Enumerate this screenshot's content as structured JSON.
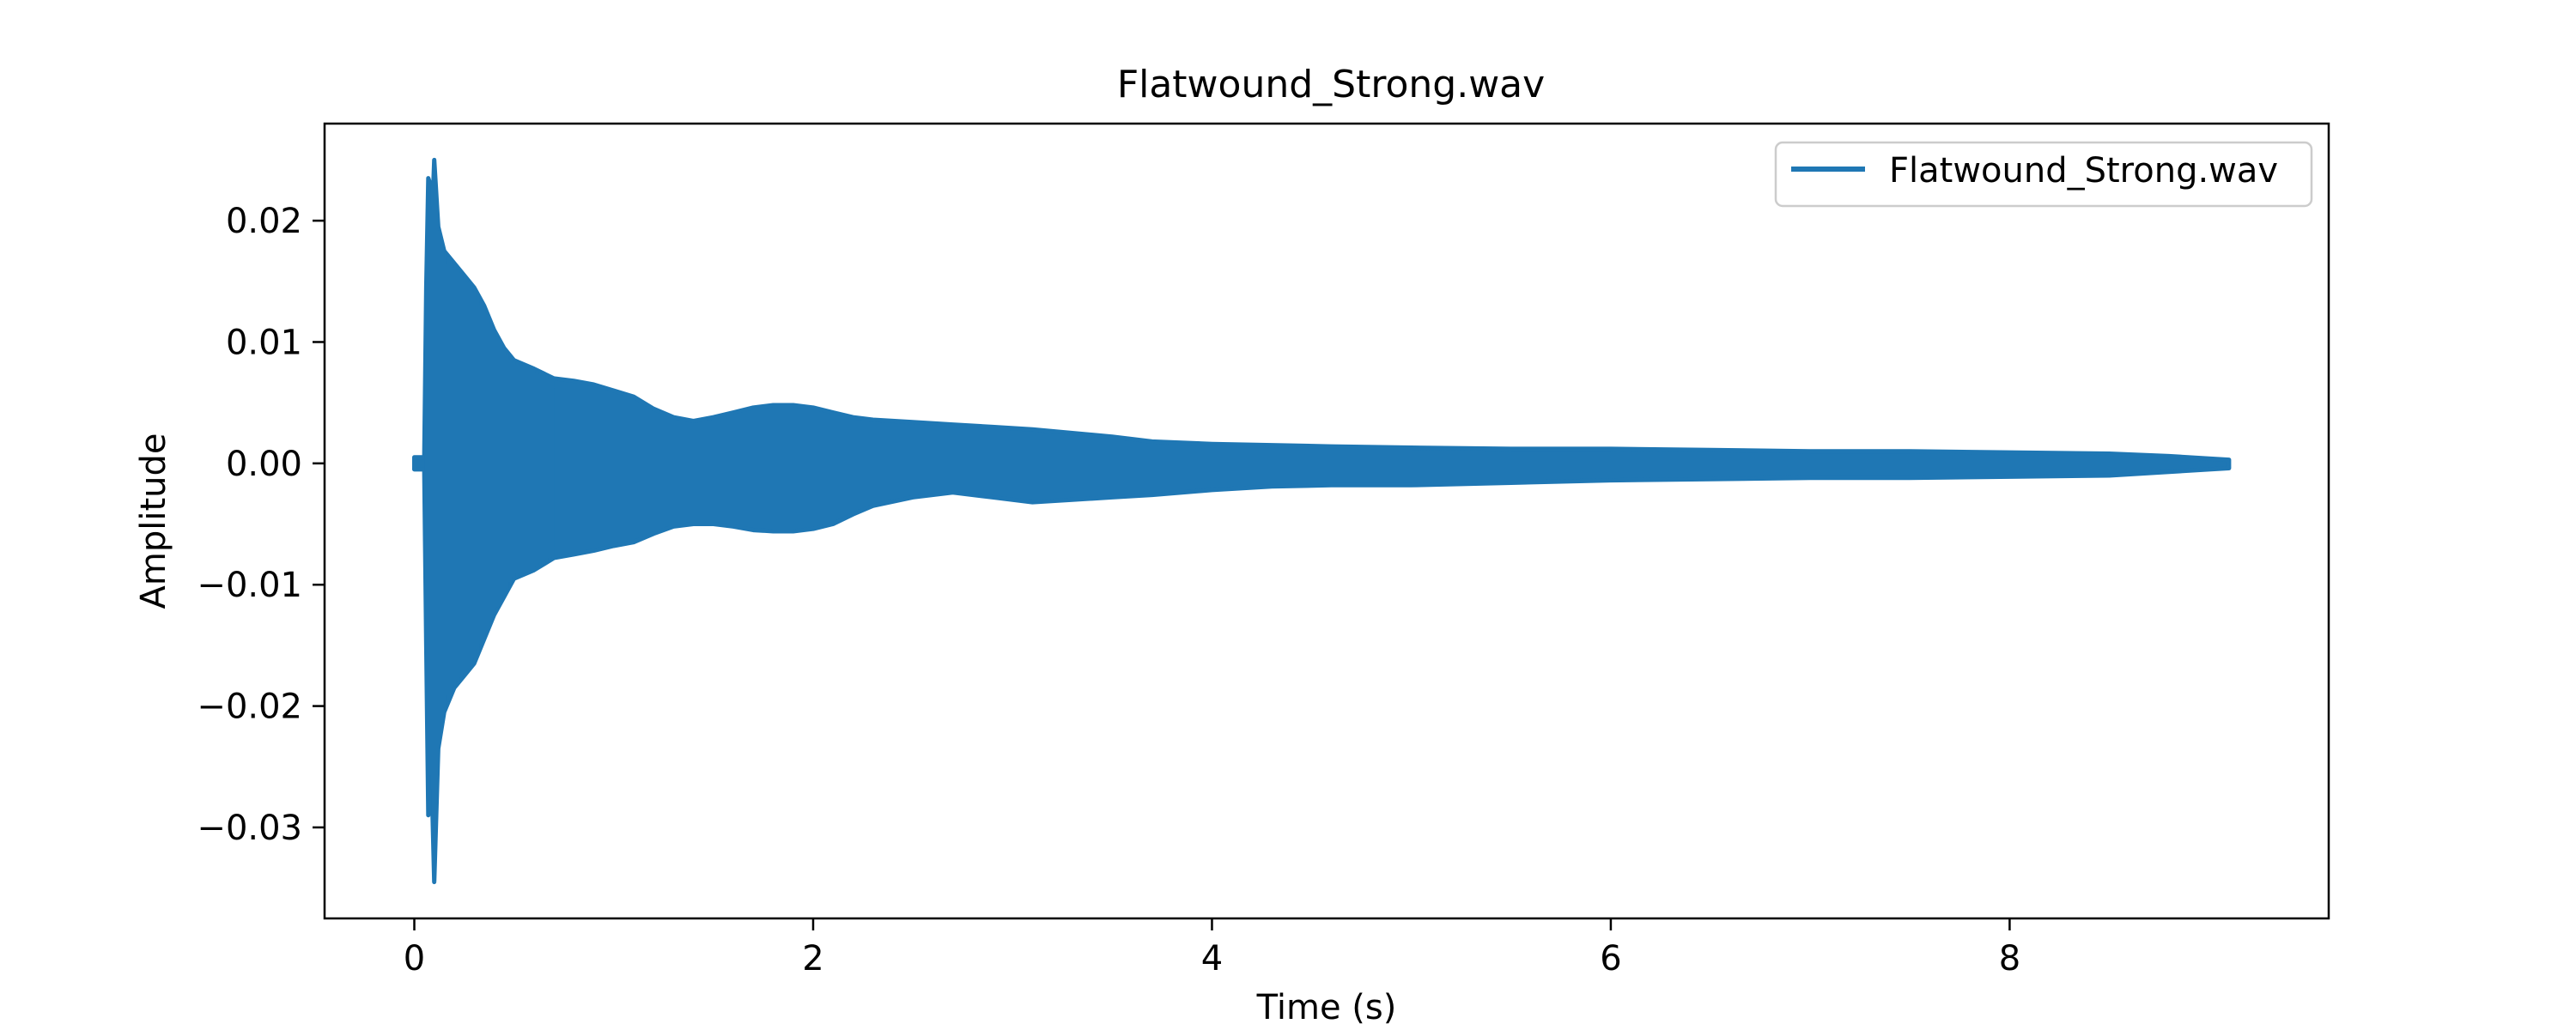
{
  "chart_data": {
    "type": "line",
    "title": "Flatwound_Strong.wav",
    "xlabel": "Time (s)",
    "ylabel": "Amplitude",
    "xlim": [
      -0.45,
      9.6
    ],
    "ylim": [
      -0.0375,
      0.028
    ],
    "x_ticks": [
      0,
      2,
      4,
      6,
      8
    ],
    "x_tick_labels": [
      "0",
      "2",
      "4",
      "6",
      "8"
    ],
    "y_ticks": [
      0.02,
      0.01,
      0.0,
      -0.01,
      -0.02,
      -0.03
    ],
    "y_tick_labels": [
      "0.02",
      "0.01",
      "0.00",
      "−0.01",
      "−0.02",
      "−0.03"
    ],
    "grid": false,
    "legend": {
      "position": "upper right",
      "entries": [
        "Flatwound_Strong.wav"
      ]
    },
    "colors": {
      "series": "#1f77b4",
      "axes": "#000000",
      "legend_border": "#cccccc"
    },
    "series": [
      {
        "name": "Flatwound_Strong.wav",
        "upper_envelope": {
          "t": [
            0.0,
            0.05,
            0.06,
            0.07,
            0.08,
            0.09,
            0.1,
            0.12,
            0.15,
            0.2,
            0.25,
            0.3,
            0.35,
            0.4,
            0.45,
            0.5,
            0.6,
            0.7,
            0.8,
            0.9,
            1.0,
            1.1,
            1.2,
            1.3,
            1.4,
            1.5,
            1.6,
            1.7,
            1.8,
            1.9,
            2.0,
            2.1,
            2.2,
            2.3,
            2.5,
            2.7,
            2.9,
            3.1,
            3.3,
            3.5,
            3.7,
            4.0,
            4.3,
            4.6,
            5.0,
            5.5,
            6.0,
            6.5,
            7.0,
            7.5,
            8.0,
            8.5,
            8.8,
            9.0,
            9.1
          ],
          "a": [
            0.0005,
            0.0005,
            0.0145,
            0.0235,
            0.023,
            0.0205,
            0.025,
            0.0195,
            0.0175,
            0.0165,
            0.0155,
            0.0145,
            0.013,
            0.011,
            0.0095,
            0.0085,
            0.0078,
            0.007,
            0.0068,
            0.0065,
            0.006,
            0.0055,
            0.0045,
            0.0038,
            0.0035,
            0.0038,
            0.0042,
            0.0046,
            0.0048,
            0.0048,
            0.0046,
            0.0042,
            0.0038,
            0.0036,
            0.0034,
            0.0032,
            0.003,
            0.0028,
            0.0025,
            0.0022,
            0.0018,
            0.0016,
            0.0015,
            0.0014,
            0.0013,
            0.0012,
            0.0012,
            0.0011,
            0.001,
            0.001,
            0.0009,
            0.0008,
            0.0006,
            0.0004,
            0.0003
          ]
        },
        "lower_envelope": {
          "t": [
            0.0,
            0.05,
            0.06,
            0.07,
            0.08,
            0.09,
            0.1,
            0.12,
            0.15,
            0.2,
            0.25,
            0.3,
            0.35,
            0.4,
            0.45,
            0.5,
            0.6,
            0.7,
            0.8,
            0.9,
            1.0,
            1.1,
            1.2,
            1.3,
            1.4,
            1.5,
            1.6,
            1.7,
            1.8,
            1.9,
            2.0,
            2.1,
            2.2,
            2.3,
            2.5,
            2.7,
            2.9,
            3.1,
            3.3,
            3.5,
            3.7,
            4.0,
            4.3,
            4.6,
            5.0,
            5.5,
            6.0,
            6.5,
            7.0,
            7.5,
            8.0,
            8.5,
            8.8,
            9.0,
            9.1
          ],
          "a": [
            -0.0005,
            -0.0005,
            -0.015,
            -0.029,
            -0.024,
            -0.028,
            -0.0345,
            -0.0235,
            -0.0205,
            -0.0185,
            -0.0175,
            -0.0165,
            -0.0145,
            -0.0125,
            -0.011,
            -0.0095,
            -0.0088,
            -0.0078,
            -0.0075,
            -0.0072,
            -0.0068,
            -0.0065,
            -0.0058,
            -0.0052,
            -0.005,
            -0.005,
            -0.0052,
            -0.0055,
            -0.0056,
            -0.0056,
            -0.0054,
            -0.005,
            -0.0042,
            -0.0035,
            -0.0028,
            -0.0024,
            -0.0028,
            -0.0032,
            -0.003,
            -0.0028,
            -0.0026,
            -0.0022,
            -0.0019,
            -0.0018,
            -0.0018,
            -0.0016,
            -0.0014,
            -0.0013,
            -0.0012,
            -0.0012,
            -0.0011,
            -0.001,
            -0.0007,
            -0.0005,
            -0.0004
          ]
        }
      }
    ]
  }
}
